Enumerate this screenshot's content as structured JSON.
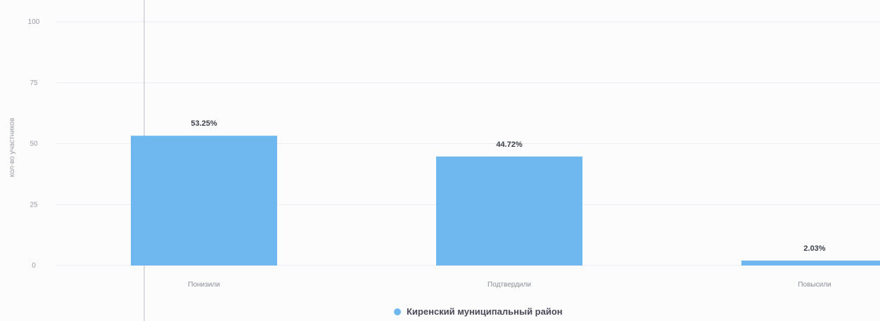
{
  "chart_data": {
    "type": "bar",
    "categories": [
      "Понизили",
      "Подтвердили",
      "Повысили"
    ],
    "values": [
      53.25,
      44.72,
      2.03
    ],
    "value_labels": [
      "53.25%",
      "44.72%",
      "2.03%"
    ],
    "ylabel": "кол-во участников",
    "ylim": [
      0,
      100
    ],
    "yticks": [
      0,
      25,
      50,
      75,
      100
    ],
    "grid": true,
    "legend": {
      "position": "bottom-center",
      "entries": [
        {
          "name": "Киренский муниципальный район",
          "color": "#6fb8ef"
        }
      ]
    },
    "series_color": "#6fb8ef"
  }
}
